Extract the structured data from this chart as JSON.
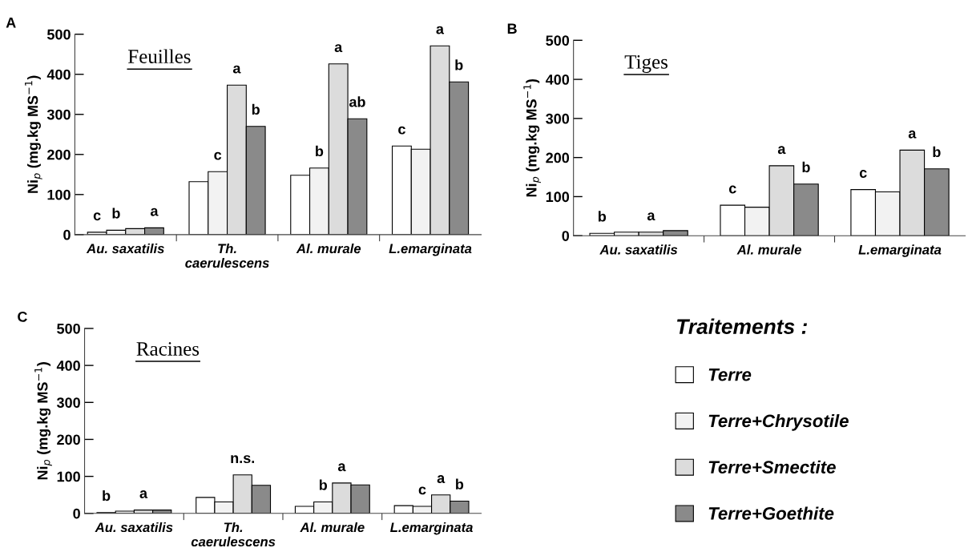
{
  "chart_data": [
    {
      "type": "bar",
      "title": "A",
      "ylabel": "Ni$_{p}$ (mg.kg MS$^{−1}$)",
      "annotations": [
        "Feuilles"
      ],
      "categories": [
        "Au. saxatilis",
        "Th.\ncaerulescens",
        "Al. murale",
        "L.emarginata"
      ],
      "ylim": [
        0,
        500
      ],
      "yticks": [
        0,
        100,
        200,
        300,
        400,
        500
      ],
      "grid": false,
      "legend": false,
      "series": [
        {
          "color": "#ffffff",
          "values": [
            6,
            132,
            148,
            221
          ],
          "value_labels": [
            "c",
            null,
            null,
            "c"
          ]
        },
        {
          "color": "#f2f2f2",
          "values": [
            11,
            157,
            166,
            213
          ],
          "value_labels": [
            "b",
            "c",
            "b",
            null
          ]
        },
        {
          "color": "#dcdcdc",
          "values": [
            15,
            373,
            426,
            471
          ],
          "value_labels": [
            null,
            "a",
            "a",
            "a"
          ]
        },
        {
          "color": "#8a8a8a",
          "values": [
            17,
            270,
            289,
            381
          ],
          "value_labels": [
            "a",
            "b",
            "ab",
            "b"
          ]
        }
      ]
    },
    {
      "type": "bar",
      "title": "B",
      "ylabel": "Ni$_{p}$ (mg.kg MS$^{−1}$)",
      "annotations": [
        "Tiges"
      ],
      "categories": [
        "Au. saxatilis",
        "Al. murale",
        "L.emarginata"
      ],
      "ylim": [
        0,
        500
      ],
      "yticks": [
        0,
        100,
        200,
        300,
        400,
        500
      ],
      "grid": false,
      "legend": false,
      "series": [
        {
          "color": "#ffffff",
          "values": [
            6,
            78,
            118
          ],
          "value_labels": [
            "b",
            "c",
            "c"
          ]
        },
        {
          "color": "#f2f2f2",
          "values": [
            9,
            73,
            112
          ],
          "value_labels": [
            null,
            null,
            null
          ]
        },
        {
          "color": "#dcdcdc",
          "values": [
            9,
            179,
            219
          ],
          "value_labels": [
            "a",
            "a",
            "a"
          ]
        },
        {
          "color": "#8a8a8a",
          "values": [
            13,
            132,
            171
          ],
          "value_labels": [
            null,
            "b",
            "b"
          ]
        }
      ]
    },
    {
      "type": "bar",
      "title": "C",
      "ylabel": "Ni$_{p}$ (mg.kg MS$^{−1}$)",
      "annotations": [
        "Racines"
      ],
      "categories": [
        "Au. saxatilis",
        "Th.\ncaerulescens",
        "Al. murale",
        "L.emarginata"
      ],
      "ylim": [
        0,
        500
      ],
      "yticks": [
        0,
        100,
        200,
        300,
        400,
        500
      ],
      "grid": false,
      "legend": "right",
      "legend_title": "Traitements :",
      "series": [
        {
          "name": "Terre",
          "color": "#ffffff",
          "values": [
            2,
            43,
            19,
            21
          ],
          "value_labels": [
            "b",
            null,
            null,
            null
          ]
        },
        {
          "name": "Terre+Chrysotile",
          "color": "#f2f2f2",
          "values": [
            6,
            31,
            31,
            19
          ],
          "value_labels": [
            null,
            null,
            "b",
            "c"
          ]
        },
        {
          "name": "Terre+Smectite",
          "color": "#dcdcdc",
          "values": [
            9,
            104,
            82,
            50
          ],
          "value_labels": [
            "a",
            "n.s.",
            "a",
            "a"
          ]
        },
        {
          "name": "Terre+Goethite",
          "color": "#8a8a8a",
          "values": [
            9,
            76,
            77,
            33
          ],
          "value_labels": [
            null,
            null,
            null,
            "b"
          ]
        }
      ]
    }
  ]
}
